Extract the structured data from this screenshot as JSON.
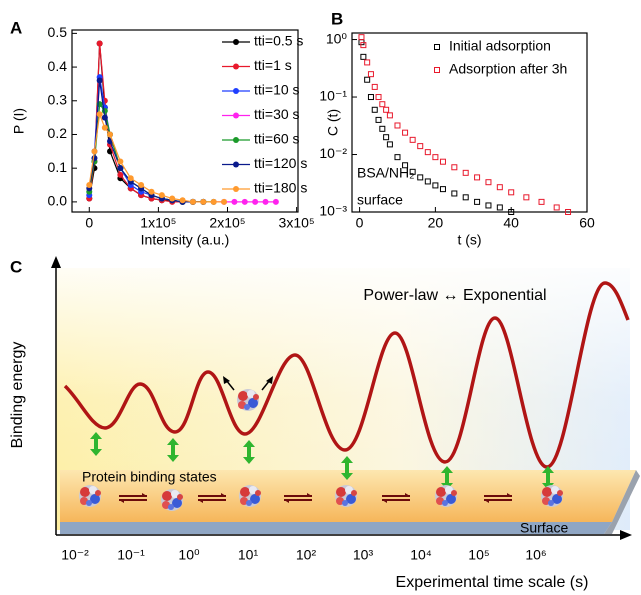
{
  "panel_labels": [
    "A",
    "B",
    "C"
  ],
  "chart_data": [
    {
      "type": "line",
      "x_label": "Intensity (a.u.)",
      "y_label": "P (I)",
      "x": [
        0,
        7500,
        15000,
        22500,
        30000,
        45000,
        60000,
        75000,
        90000,
        105000,
        120000,
        135000,
        150000,
        165000,
        180000,
        195000,
        210000,
        225000,
        240000,
        255000,
        270000
      ],
      "xlim": [
        -25000,
        302000
      ],
      "xticks": [
        0,
        {
          "value": 100000,
          "label": "1x10⁵"
        },
        {
          "value": 200000,
          "label": "2x10⁵"
        },
        {
          "value": 300000,
          "label": "3x10⁵"
        }
      ],
      "ylim": [
        -0.03,
        0.51
      ],
      "yticks": [
        {
          "value": 0,
          "label": "0.0"
        },
        0.1,
        0.2,
        0.3,
        0.4,
        0.5
      ],
      "series": [
        {
          "name": "tti=0.5 s",
          "color": "#000000",
          "values": [
            0.01,
            0.1,
            0.47,
            0.28,
            0.15,
            0.07,
            0.04,
            0.02,
            0.01,
            0.005,
            0.003,
            0,
            0,
            0,
            null,
            null,
            null,
            null,
            null,
            null,
            null
          ]
        },
        {
          "name": "tti=1 s",
          "color": "#e8192c",
          "values": [
            0.01,
            0.12,
            0.47,
            0.3,
            0.17,
            0.08,
            0.04,
            0.02,
            0.01,
            0.005,
            0,
            0,
            0,
            null,
            null,
            null,
            null,
            null,
            null,
            null,
            null
          ]
        },
        {
          "name": "tti=10 s",
          "color": "#1f3fff",
          "values": [
            0.02,
            0.15,
            0.37,
            0.28,
            0.2,
            0.1,
            0.05,
            0.03,
            0.02,
            0.01,
            0.005,
            0,
            0,
            0,
            null,
            null,
            null,
            null,
            null,
            null,
            null
          ]
        },
        {
          "name": "tti=30 s",
          "color": "#ff22ee",
          "values": [
            null,
            null,
            null,
            null,
            null,
            null,
            null,
            null,
            null,
            null,
            null,
            null,
            null,
            null,
            0,
            0,
            0,
            0,
            0,
            0,
            0
          ]
        },
        {
          "name": "tti=60 s",
          "color": "#1b9a2a",
          "values": [
            0.03,
            0.12,
            0.29,
            0.27,
            0.2,
            0.1,
            0.06,
            0.04,
            0.02,
            0.01,
            0.005,
            0,
            0,
            0,
            0,
            null,
            null,
            null,
            null,
            null,
            null
          ]
        },
        {
          "name": "tti=120 s",
          "color": "#0a1a8c",
          "values": [
            0.04,
            0.13,
            0.36,
            0.25,
            0.18,
            0.1,
            0.06,
            0.04,
            0.02,
            0.01,
            0.005,
            0,
            0,
            0,
            null,
            null,
            null,
            null,
            null,
            null,
            null
          ]
        },
        {
          "name": "tti=180 s",
          "color": "#ff9a2e",
          "values": [
            0.05,
            0.15,
            0.26,
            0.22,
            0.2,
            0.12,
            0.07,
            0.05,
            0.03,
            0.02,
            0.01,
            0.005,
            0,
            0,
            0,
            0,
            null,
            null,
            null,
            null,
            null
          ]
        }
      ]
    },
    {
      "type": "scatter",
      "x_label": "t (s)",
      "y_label": "C (t)",
      "ylog": true,
      "annotations": [
        "BSA/NH₂",
        "surface"
      ],
      "x": [
        0.5,
        1,
        2,
        3,
        4,
        5,
        6,
        7,
        8,
        10,
        12,
        14,
        16,
        18,
        20,
        22,
        25,
        28,
        31,
        34,
        37,
        40,
        44,
        48,
        52,
        55
      ],
      "xlim": [
        -2,
        60
      ],
      "xticks": [
        0,
        20,
        40,
        60
      ],
      "ylim": [
        0.001,
        1.3
      ],
      "yticks": [
        {
          "value": 1,
          "label": "10⁰"
        },
        {
          "value": 0.1,
          "label": "10⁻¹"
        },
        {
          "value": 0.01,
          "label": "10⁻²"
        },
        {
          "value": 0.001,
          "label": "10⁻³"
        }
      ],
      "series": [
        {
          "name": "Initial adsorption",
          "color": "#000000",
          "values": [
            0.9,
            0.5,
            0.2,
            0.1,
            0.06,
            0.04,
            0.028,
            0.02,
            0.015,
            0.009,
            0.0065,
            0.005,
            0.004,
            0.0034,
            0.0029,
            0.0025,
            0.0021,
            0.0018,
            0.0015,
            0.0013,
            0.0012,
            0.001,
            null,
            null,
            null,
            null
          ]
        },
        {
          "name": "Adsorption after 3h",
          "color": "#e8192c",
          "values": [
            1.1,
            0.8,
            0.4,
            0.25,
            0.15,
            0.1,
            0.075,
            0.06,
            0.048,
            0.032,
            0.024,
            0.018,
            0.014,
            0.011,
            0.009,
            0.0075,
            0.006,
            0.0048,
            0.004,
            0.0033,
            0.0027,
            0.0022,
            0.0018,
            0.0015,
            0.0012,
            0.001
          ]
        }
      ]
    }
  ],
  "diagram": {
    "y_label": "Binding energy",
    "title": "Power-law ↔ Exponential",
    "states_label": "Protein binding states",
    "surface_label": "Surface",
    "time_ticks": [
      "10⁻²",
      "10⁻¹",
      "10⁰",
      "10¹",
      "10²",
      "10³",
      "10⁴",
      "10⁵",
      "10⁶"
    ],
    "x_label": "Experimental time scale (s)"
  }
}
